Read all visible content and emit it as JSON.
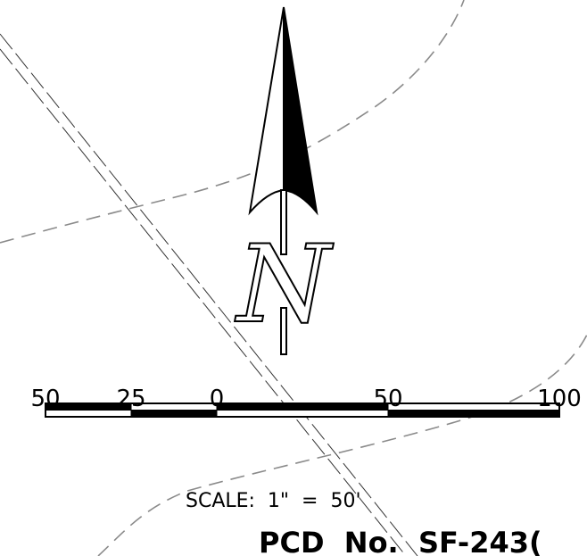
{
  "north_arrow": {
    "letter": "N",
    "icon": "north-arrow-icon"
  },
  "scale_bar": {
    "tick_labels": [
      "50",
      "25",
      "0",
      "50",
      "100"
    ],
    "scale_text": "SCALE:  1\"  =  50'"
  },
  "drawing_ref": {
    "text": "PCD  No.  SF-243("
  },
  "colors": {
    "ink": "#000000",
    "dashed_line": "#888888",
    "background": "#ffffff"
  }
}
